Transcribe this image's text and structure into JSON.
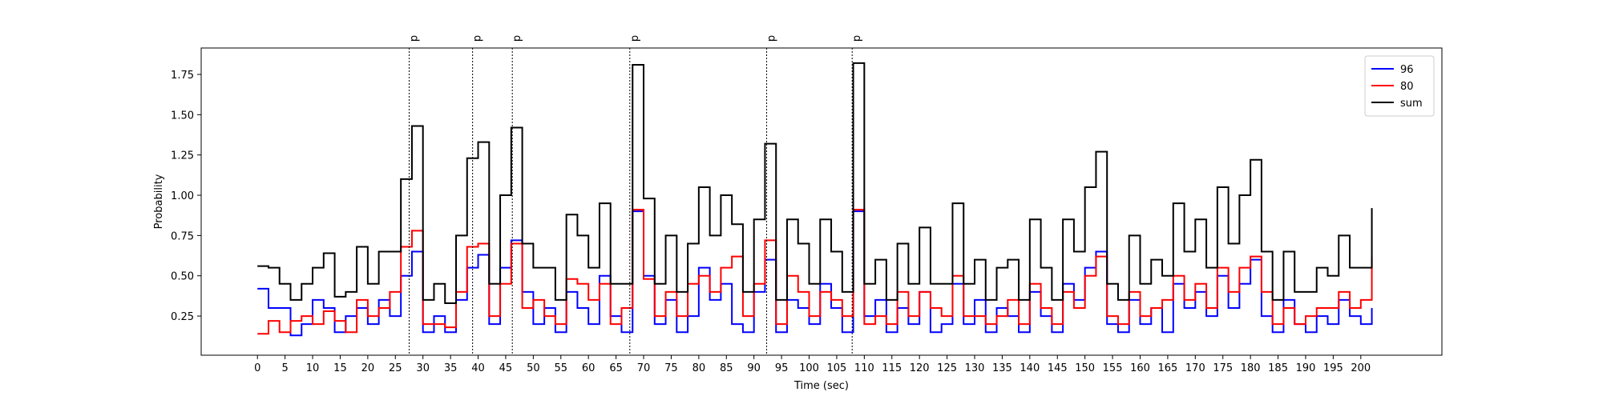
{
  "chart_data": {
    "type": "line",
    "drawstyle": "steps-post",
    "xlabel": "Time (sec)",
    "ylabel": "Probability",
    "xlim": [
      -10.2,
      214.7
    ],
    "ylim": [
      0.007,
      1.914
    ],
    "xticks": [
      0,
      5,
      10,
      15,
      20,
      25,
      30,
      35,
      40,
      45,
      50,
      55,
      60,
      65,
      70,
      75,
      80,
      85,
      90,
      95,
      100,
      105,
      110,
      115,
      120,
      125,
      130,
      135,
      140,
      145,
      150,
      155,
      160,
      165,
      170,
      175,
      180,
      185,
      190,
      195,
      200
    ],
    "yticks": [
      0.25,
      {
        "value": 0.5,
        "label": "0.50"
      },
      0.75,
      {
        "value": 1.0,
        "label": "1.00"
      },
      1.25,
      {
        "value": 1.5,
        "label": "1.50"
      },
      1.75
    ],
    "grid": false,
    "legend": "upper right",
    "annotations": [
      {
        "x": 27.5,
        "text": "p"
      },
      {
        "x": 39,
        "text": "p"
      },
      {
        "x": 46.2,
        "text": "p"
      },
      {
        "x": 67.5,
        "text": "p"
      },
      {
        "x": 92.3,
        "text": "p"
      },
      {
        "x": 107.8,
        "text": "p"
      }
    ],
    "x": [
      0,
      2,
      4,
      6,
      8,
      10,
      12,
      14,
      16,
      18,
      20,
      22,
      24,
      26,
      28,
      30,
      32,
      34,
      36,
      38,
      40,
      42,
      44,
      46,
      48,
      50,
      52,
      54,
      56,
      58,
      60,
      62,
      64,
      66,
      68,
      70,
      72,
      74,
      76,
      78,
      80,
      82,
      84,
      86,
      88,
      90,
      92,
      94,
      96,
      98,
      100,
      102,
      104,
      106,
      108,
      110,
      112,
      114,
      116,
      118,
      120,
      122,
      124,
      126,
      128,
      130,
      132,
      134,
      136,
      138,
      140,
      142,
      144,
      146,
      148,
      150,
      152,
      154,
      156,
      158,
      160,
      162,
      164,
      166,
      168,
      170,
      172,
      174,
      176,
      178,
      180,
      182,
      184,
      186,
      188,
      190,
      192,
      194,
      196,
      198,
      200,
      202
    ],
    "series": [
      {
        "name": "96",
        "color": "#0000ff",
        "values": [
          0.42,
          0.3,
          0.3,
          0.13,
          0.2,
          0.35,
          0.3,
          0.15,
          0.25,
          0.3,
          0.2,
          0.35,
          0.25,
          0.5,
          0.65,
          0.15,
          0.25,
          0.15,
          0.35,
          0.55,
          0.63,
          0.2,
          0.55,
          0.72,
          0.4,
          0.2,
          0.3,
          0.15,
          0.4,
          0.3,
          0.2,
          0.5,
          0.25,
          0.15,
          0.9,
          0.5,
          0.2,
          0.35,
          0.15,
          0.25,
          0.55,
          0.35,
          0.45,
          0.2,
          0.15,
          0.4,
          0.6,
          0.15,
          0.35,
          0.3,
          0.2,
          0.45,
          0.3,
          0.15,
          0.9,
          0.25,
          0.35,
          0.15,
          0.3,
          0.2,
          0.4,
          0.15,
          0.2,
          0.45,
          0.2,
          0.35,
          0.15,
          0.3,
          0.25,
          0.15,
          0.4,
          0.25,
          0.15,
          0.45,
          0.35,
          0.55,
          0.65,
          0.2,
          0.15,
          0.35,
          0.2,
          0.3,
          0.15,
          0.45,
          0.3,
          0.4,
          0.25,
          0.5,
          0.3,
          0.45,
          0.6,
          0.25,
          0.15,
          0.35,
          0.2,
          0.15,
          0.25,
          0.2,
          0.35,
          0.25,
          0.2,
          0.3
        ]
      },
      {
        "name": "80",
        "color": "#ff0000",
        "values": [
          0.14,
          0.22,
          0.15,
          0.22,
          0.25,
          0.2,
          0.28,
          0.22,
          0.15,
          0.35,
          0.25,
          0.3,
          0.4,
          0.68,
          0.78,
          0.2,
          0.2,
          0.18,
          0.4,
          0.68,
          0.7,
          0.25,
          0.45,
          0.7,
          0.3,
          0.35,
          0.25,
          0.2,
          0.48,
          0.45,
          0.35,
          0.45,
          0.2,
          0.3,
          0.91,
          0.48,
          0.25,
          0.4,
          0.25,
          0.45,
          0.5,
          0.4,
          0.55,
          0.62,
          0.25,
          0.45,
          0.72,
          0.2,
          0.5,
          0.4,
          0.25,
          0.4,
          0.35,
          0.25,
          0.91,
          0.2,
          0.25,
          0.2,
          0.4,
          0.25,
          0.4,
          0.3,
          0.25,
          0.5,
          0.25,
          0.25,
          0.2,
          0.25,
          0.35,
          0.2,
          0.45,
          0.3,
          0.2,
          0.4,
          0.3,
          0.5,
          0.62,
          0.25,
          0.2,
          0.4,
          0.25,
          0.3,
          0.35,
          0.5,
          0.35,
          0.45,
          0.3,
          0.55,
          0.4,
          0.55,
          0.62,
          0.4,
          0.2,
          0.3,
          0.2,
          0.25,
          0.3,
          0.3,
          0.4,
          0.3,
          0.35,
          0.62
        ]
      },
      {
        "name": "sum",
        "color": "#000000",
        "values": [
          0.56,
          0.55,
          0.45,
          0.35,
          0.45,
          0.55,
          0.64,
          0.37,
          0.4,
          0.68,
          0.45,
          0.65,
          0.65,
          1.1,
          1.43,
          0.35,
          0.45,
          0.33,
          0.75,
          1.23,
          1.33,
          0.45,
          1.0,
          1.42,
          0.7,
          0.55,
          0.55,
          0.35,
          0.88,
          0.75,
          0.55,
          0.95,
          0.45,
          0.45,
          1.81,
          0.98,
          0.45,
          0.75,
          0.4,
          0.7,
          1.05,
          0.75,
          1.0,
          0.82,
          0.4,
          0.85,
          1.32,
          0.35,
          0.85,
          0.7,
          0.45,
          0.85,
          0.65,
          0.4,
          1.82,
          0.45,
          0.6,
          0.35,
          0.7,
          0.45,
          0.8,
          0.45,
          0.45,
          0.95,
          0.45,
          0.6,
          0.35,
          0.55,
          0.6,
          0.35,
          0.85,
          0.55,
          0.35,
          0.85,
          0.65,
          1.05,
          1.27,
          0.45,
          0.35,
          0.75,
          0.45,
          0.6,
          0.5,
          0.95,
          0.65,
          0.85,
          0.55,
          1.05,
          0.7,
          1.0,
          1.22,
          0.65,
          0.35,
          0.65,
          0.4,
          0.4,
          0.55,
          0.5,
          0.75,
          0.55,
          0.55,
          0.92
        ]
      }
    ]
  }
}
